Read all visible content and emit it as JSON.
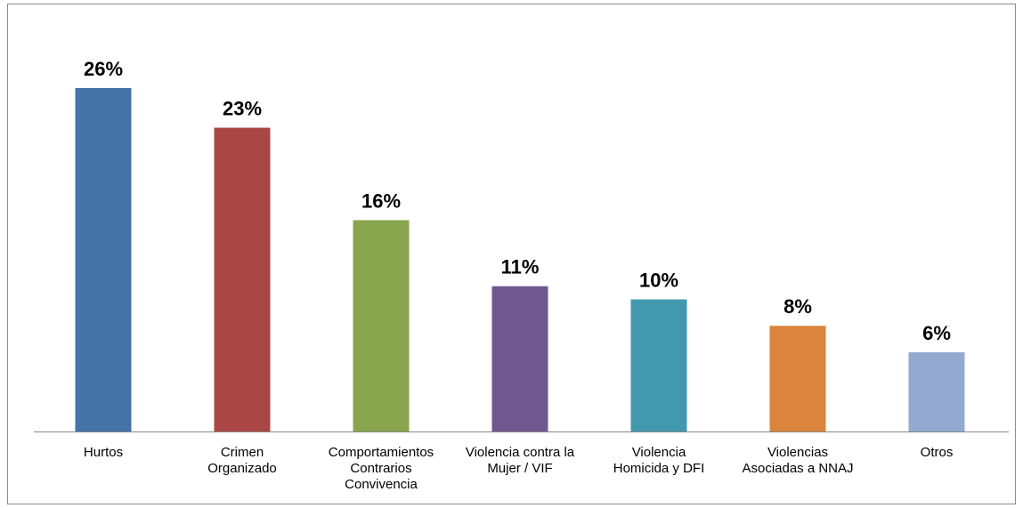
{
  "chart_data": {
    "type": "bar",
    "categories": [
      "Hurtos",
      "Crimen Organizado",
      "Comportamientos Contrarios Convivencia",
      "Violencia contra la Mujer / VIF",
      "Violencia Homicida y DFI",
      "Violencias Asociadas a NNAJ",
      "Otros"
    ],
    "category_lines": [
      [
        "Hurtos"
      ],
      [
        "Crimen",
        "Organizado"
      ],
      [
        "Comportamientos",
        "Contrarios",
        "Convivencia"
      ],
      [
        "Violencia contra la",
        "Mujer / VIF"
      ],
      [
        "Violencia",
        "Homicida y DFI"
      ],
      [
        "Violencias",
        "Asociadas a NNAJ"
      ],
      [
        "Otros"
      ]
    ],
    "values": [
      26,
      23,
      16,
      11,
      10,
      8,
      6
    ],
    "value_labels": [
      "26%",
      "23%",
      "16%",
      "11%",
      "10%",
      "8%",
      "6%"
    ],
    "colors": [
      "#4572a7",
      "#aa4643",
      "#89a54e",
      "#71588f",
      "#4198af",
      "#db843d",
      "#93a9cf"
    ],
    "ylim": [
      0,
      26
    ],
    "grid": false,
    "title": "",
    "xlabel": "",
    "ylabel": ""
  }
}
